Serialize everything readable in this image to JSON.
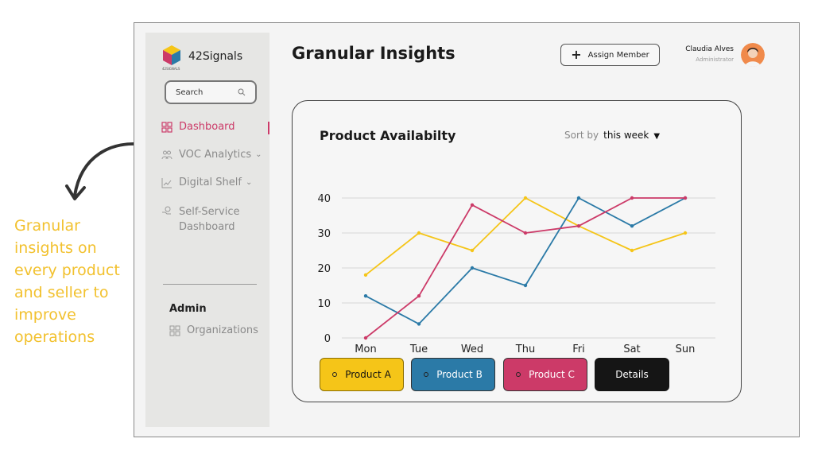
{
  "caption": "Granular insights on every product and seller to improve operations",
  "brand": {
    "name": "42Signals",
    "logo_sub": "42SIGNALS"
  },
  "search": {
    "label": "Search"
  },
  "sidebar": {
    "items": [
      {
        "label": "Dashboard",
        "icon": "grid-icon",
        "active": true
      },
      {
        "label": "VOC Analytics",
        "icon": "users-icon",
        "has_chevron": true
      },
      {
        "label": "Digital Shelf",
        "icon": "trend-icon",
        "has_chevron": true
      },
      {
        "label": "Self-Service",
        "label2": "Dashboard",
        "icon": "gear-hand-icon"
      }
    ],
    "admin_title": "Admin",
    "admin_items": [
      {
        "label": "Organizations",
        "icon": "grid-icon"
      }
    ]
  },
  "header": {
    "title": "Granular Insights",
    "assign_label": "Assign Member",
    "user_name": "Claudia Alves",
    "user_role": "Administrator"
  },
  "card": {
    "sort_label": "Sort by",
    "sort_value": "this week",
    "details_label": "Details"
  },
  "colors": {
    "product_a": "#f5c518",
    "product_b": "#2b7aa7",
    "product_c": "#cc3a68",
    "accent": "#cc3a68",
    "caption": "#f2c12e"
  },
  "chart_data": {
    "type": "line",
    "title": "Product Availabilty",
    "categories": [
      "Mon",
      "Tue",
      "Wed",
      "Thu",
      "Fri",
      "Sat",
      "Sun"
    ],
    "yticks": [
      0,
      10,
      20,
      30,
      40
    ],
    "ylim": [
      0,
      40
    ],
    "grid": true,
    "series": [
      {
        "name": "Product A",
        "color": "#f5c518",
        "values": [
          18,
          30,
          25,
          40,
          32,
          25,
          30
        ]
      },
      {
        "name": "Product B",
        "color": "#2b7aa7",
        "values": [
          12,
          4,
          20,
          15,
          40,
          32,
          40
        ]
      },
      {
        "name": "Product C",
        "color": "#cc3a68",
        "values": [
          0,
          12,
          38,
          30,
          32,
          40,
          40
        ]
      }
    ]
  }
}
